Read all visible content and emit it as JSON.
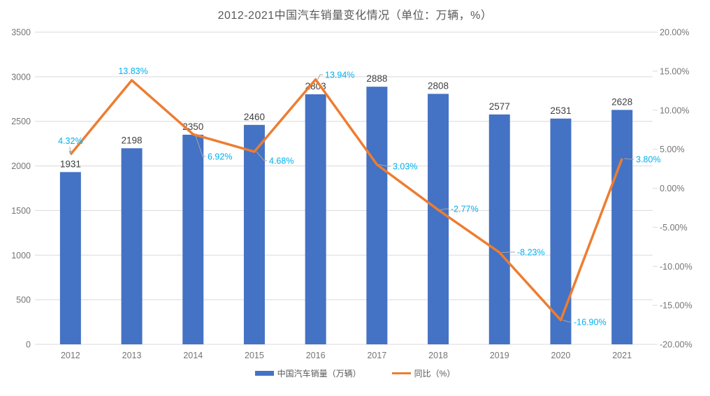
{
  "title": "2012-2021中国汽车销量变化情况（单位：万辆，%）",
  "colors": {
    "bar": "#4472C4",
    "line": "#ED7D31",
    "line_label": "#00B0F0",
    "bar_label": "#404040",
    "axis_text": "#757575",
    "grid": "#D9D9D9",
    "leader": "#A6A6A6"
  },
  "chart_data": {
    "type": "bar+line",
    "title": "2012-2021中国汽车销量变化情况（单位：万辆，%）",
    "categories": [
      "2012",
      "2013",
      "2014",
      "2015",
      "2016",
      "2017",
      "2018",
      "2019",
      "2020",
      "2021"
    ],
    "series": [
      {
        "name": "中国汽车销量（万辆）",
        "type": "bar",
        "color": "#4472C4",
        "values": [
          1931,
          2198,
          2350,
          2460,
          2803,
          2888,
          2808,
          2577,
          2531,
          2628
        ],
        "labels": [
          "1931",
          "2198",
          "2350",
          "2460",
          "2803",
          "2888",
          "2808",
          "2577",
          "2531",
          "2628"
        ]
      },
      {
        "name": "同比（%）",
        "type": "line",
        "color": "#ED7D31",
        "values": [
          4.32,
          13.83,
          6.92,
          4.68,
          13.94,
          3.03,
          -2.77,
          -8.23,
          -16.9,
          3.8
        ],
        "labels": [
          "4.32%",
          "13.83%",
          "6.92%",
          "4.68%",
          "13.94%",
          "3.03%",
          "-2.77%",
          "-8.23%",
          "-16.90%",
          "3.80%"
        ],
        "label_color": "#00B0F0"
      }
    ],
    "left_axis": {
      "min": 0,
      "max": 3500,
      "step": 500,
      "ticks": [
        "3500",
        "3000",
        "2500",
        "2000",
        "1500",
        "1000",
        "500",
        "0"
      ]
    },
    "right_axis": {
      "min": -20,
      "max": 20,
      "step": 5,
      "ticks": [
        "20.00%",
        "15.00%",
        "10.00%",
        "5.00%",
        "0.00%",
        "-5.00%",
        "-10.00%",
        "-15.00%",
        "-20.00%"
      ]
    },
    "grid": true,
    "legend_position": "bottom"
  },
  "legend": {
    "items": [
      {
        "label": "中国汽车销量（万辆）",
        "swatch": "bar",
        "color": "#4472C4"
      },
      {
        "label": "同比（%）",
        "swatch": "line",
        "color": "#ED7D31"
      }
    ]
  }
}
